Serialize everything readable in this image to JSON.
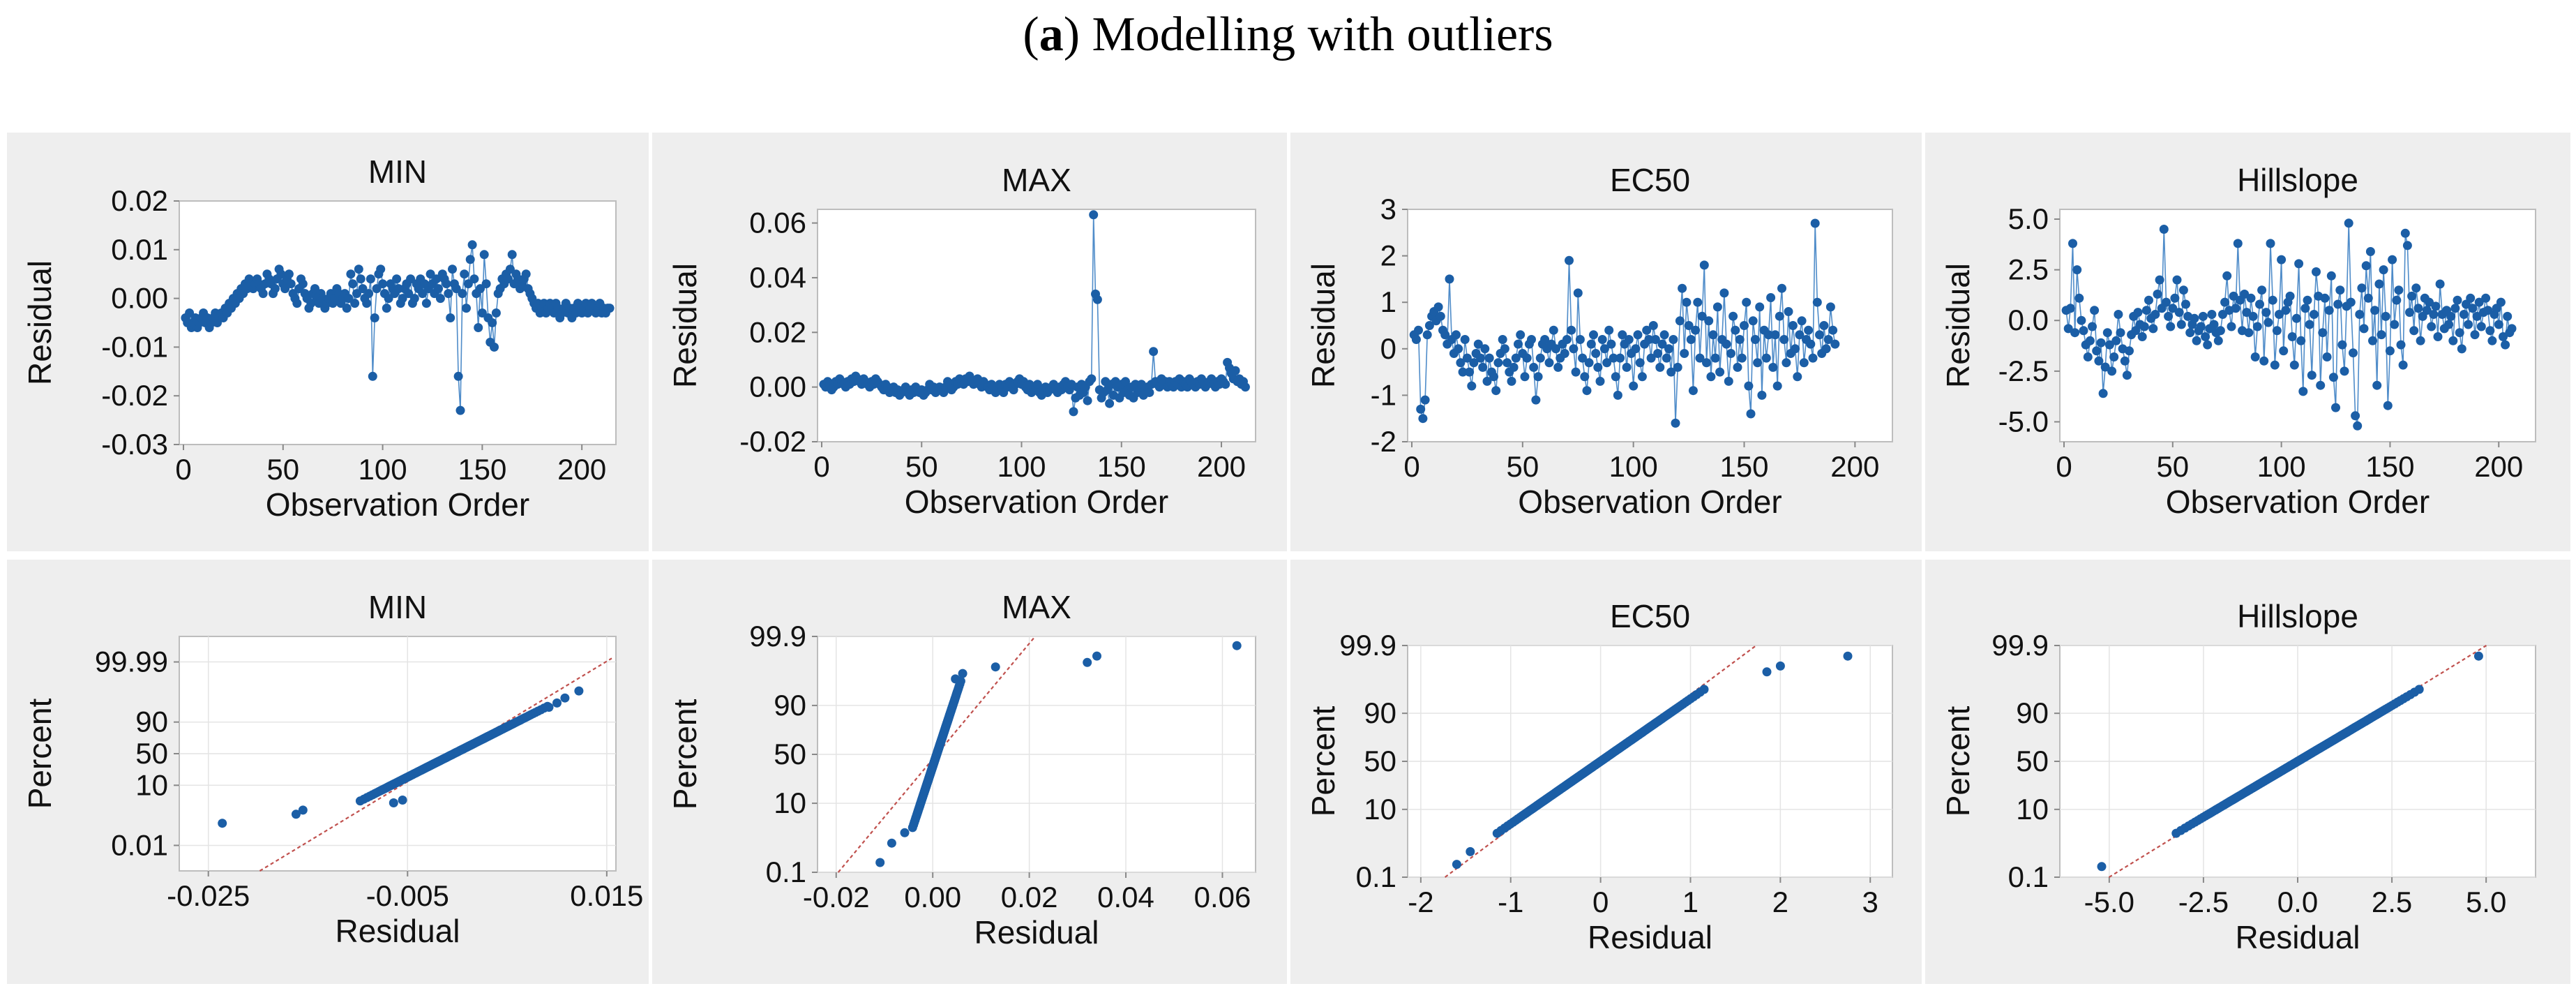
{
  "figure": {
    "label": "a",
    "caption": "Modelling with outliers"
  },
  "chart_data": [
    {
      "type": "line",
      "id": "min-order",
      "title": "MIN",
      "xlabel": "Observation Order",
      "ylabel": "Residual",
      "xlim": [
        0,
        215
      ],
      "ylim": [
        -0.03,
        0.02
      ],
      "xticks": [
        0,
        50,
        100,
        150,
        200
      ],
      "yticks": [
        -0.03,
        -0.02,
        -0.01,
        0.0,
        0.01,
        0.02
      ],
      "ytick_labels": [
        "-0.03",
        "-0.02",
        "-0.01",
        "0.00",
        "0.01",
        "0.02"
      ],
      "values": [
        -0.004,
        -0.005,
        -0.003,
        -0.006,
        -0.005,
        -0.004,
        -0.006,
        -0.005,
        -0.004,
        -0.003,
        -0.005,
        -0.004,
        -0.006,
        -0.005,
        -0.004,
        -0.003,
        -0.005,
        -0.004,
        -0.003,
        -0.004,
        -0.002,
        -0.003,
        -0.001,
        -0.002,
        0.0,
        -0.001,
        0.001,
        0.0,
        0.002,
        0.001,
        0.003,
        0.002,
        0.004,
        0.003,
        0.002,
        0.003,
        0.004,
        0.003,
        0.002,
        0.001,
        0.003,
        0.005,
        0.004,
        0.003,
        0.001,
        0.002,
        0.004,
        0.006,
        0.005,
        0.003,
        0.002,
        0.004,
        0.005,
        0.003,
        0.001,
        0.0,
        -0.001,
        0.002,
        0.004,
        0.003,
        0.001,
        0.0,
        -0.002,
        -0.001,
        0.001,
        0.002,
        0.0,
        -0.001,
        0.001,
        0.0,
        -0.002,
        -0.001,
        0.0,
        0.001,
        -0.001,
        0.0,
        0.002,
        0.001,
        -0.001,
        0.0,
        0.001,
        -0.002,
        0.0,
        0.005,
        0.003,
        -0.001,
        0.001,
        0.006,
        0.004,
        0.002,
        0.0,
        -0.001,
        0.001,
        0.004,
        -0.016,
        -0.004,
        0.002,
        0.005,
        0.006,
        0.003,
        0.001,
        -0.002,
        0.0,
        0.003,
        0.002,
        0.001,
        0.004,
        0.002,
        -0.001,
        0.0,
        0.002,
        0.003,
        0.001,
        0.004,
        -0.001,
        0.0,
        0.003,
        0.002,
        0.004,
        0.001,
        0.003,
        -0.001,
        0.002,
        0.005,
        0.003,
        0.001,
        0.004,
        0.002,
        0.0,
        0.005,
        0.004,
        0.003,
        0.001,
        -0.004,
        0.006,
        0.003,
        0.002,
        -0.016,
        -0.023,
        0.001,
        0.005,
        -0.002,
        0.003,
        0.008,
        0.011,
        0.004,
        0.001,
        -0.006,
        0.002,
        -0.003,
        0.009,
        0.003,
        -0.004,
        -0.009,
        -0.005,
        -0.01,
        -0.003,
        0.001,
        0.002,
        0.004,
        0.003,
        0.005,
        0.004,
        0.006,
        0.009,
        0.003,
        0.005,
        0.004,
        0.002,
        0.003,
        0.004,
        0.005,
        0.002,
        0.001,
        0.0,
        -0.001,
        -0.002,
        -0.001,
        -0.003,
        -0.002,
        -0.001,
        -0.003,
        -0.002,
        -0.001,
        -0.002,
        -0.003,
        -0.001,
        -0.002,
        -0.004,
        -0.003,
        -0.002,
        -0.001,
        -0.003,
        -0.002,
        -0.004,
        -0.002,
        -0.003,
        -0.001,
        -0.002,
        -0.003,
        -0.002,
        -0.001,
        -0.003,
        -0.002,
        -0.001,
        -0.002,
        -0.003,
        -0.002,
        -0.001,
        -0.003,
        -0.002,
        -0.003,
        -0.002,
        -0.002
      ]
    },
    {
      "type": "line",
      "id": "max-order",
      "title": "MAX",
      "xlabel": "Observation Order",
      "ylabel": "Residual",
      "xlim": [
        0,
        215
      ],
      "ylim": [
        -0.02,
        0.065
      ],
      "xticks": [
        0,
        50,
        100,
        150,
        200
      ],
      "yticks": [
        -0.02,
        0.0,
        0.02,
        0.04,
        0.06
      ],
      "ytick_labels": [
        "-0.02",
        "0.00",
        "0.02",
        "0.04",
        "0.06"
      ],
      "values": [
        0.001,
        0.0,
        0.002,
        0.001,
        -0.001,
        0.0,
        0.002,
        0.001,
        0.003,
        0.002,
        0.001,
        0.0,
        0.002,
        0.001,
        0.003,
        0.002,
        0.004,
        0.003,
        0.002,
        0.001,
        0.003,
        0.002,
        0.001,
        0.0,
        0.002,
        0.001,
        0.003,
        0.002,
        0.001,
        0.0,
        -0.001,
        0.001,
        0.0,
        -0.002,
        -0.001,
        0.0,
        -0.002,
        -0.001,
        -0.003,
        -0.002,
        -0.001,
        0.0,
        -0.002,
        -0.003,
        -0.001,
        -0.002,
        0.0,
        -0.001,
        -0.002,
        -0.001,
        -0.003,
        -0.002,
        -0.001,
        0.001,
        -0.001,
        0.0,
        -0.002,
        -0.001,
        0.0,
        -0.001,
        -0.002,
        0.0,
        0.002,
        0.001,
        -0.001,
        0.0,
        0.002,
        0.001,
        0.003,
        0.002,
        0.001,
        0.003,
        0.002,
        0.004,
        0.002,
        0.001,
        0.002,
        0.003,
        0.001,
        0.0,
        0.002,
        0.001,
        0.0,
        -0.001,
        0.001,
        0.0,
        -0.002,
        -0.001,
        0.001,
        0.0,
        -0.002,
        0.001,
        0.0,
        0.002,
        0.001,
        -0.001,
        0.001,
        0.002,
        0.003,
        0.001,
        0.002,
        0.0,
        -0.001,
        0.001,
        -0.002,
        -0.001,
        0.0,
        0.001,
        -0.002,
        -0.003,
        -0.001,
        0.0,
        -0.002,
        -0.001,
        0.0,
        0.001,
        -0.001,
        -0.002,
        0.0,
        -0.001,
        0.001,
        0.002,
        0.0,
        -0.001,
        0.001,
        -0.009,
        -0.004,
        0.0,
        -0.003,
        0.001,
        -0.002,
        0.0,
        -0.005,
        0.002,
        0.003,
        0.063,
        0.034,
        0.032,
        -0.001,
        -0.004,
        -0.002,
        0.002,
        -0.001,
        -0.006,
        0.001,
        -0.003,
        0.002,
        0.0,
        -0.004,
        0.001,
        -0.002,
        0.002,
        -0.001,
        -0.003,
        0.0,
        -0.004,
        0.001,
        -0.002,
        -0.001,
        0.001,
        -0.003,
        -0.001,
        0.0,
        -0.002,
        0.001,
        0.013,
        0.002,
        0.001,
        0.0,
        0.003,
        0.001,
        0.002,
        0.0,
        0.002,
        0.001,
        0.0,
        0.002,
        0.001,
        0.003,
        0.0,
        0.002,
        0.001,
        0.0,
        0.003,
        0.002,
        0.001,
        0.0,
        0.002,
        0.001,
        0.003,
        0.002,
        0.0,
        0.001,
        0.002,
        0.003,
        0.001,
        0.0,
        0.002,
        0.001,
        0.003,
        0.002,
        0.001,
        0.009,
        0.007,
        0.005,
        0.003,
        0.006,
        0.002,
        0.003,
        0.001,
        0.002,
        0.0
      ]
    },
    {
      "type": "line",
      "id": "ec50-order",
      "title": "EC50",
      "xlabel": "Observation Order",
      "ylabel": "Residual",
      "xlim": [
        0,
        215
      ],
      "ylim": [
        -2,
        3
      ],
      "xticks": [
        0,
        50,
        100,
        150,
        200
      ],
      "yticks": [
        -2,
        -1,
        0,
        1,
        2,
        3
      ],
      "ytick_labels": [
        "-2",
        "-1",
        "0",
        "1",
        "2",
        "3"
      ],
      "values": [
        0.3,
        0.2,
        0.4,
        -1.3,
        -1.5,
        -1.1,
        0.3,
        0.5,
        0.7,
        0.8,
        0.6,
        0.9,
        0.7,
        0.4,
        0.3,
        0.1,
        1.5,
        0.2,
        -0.1,
        0.3,
        0.0,
        -0.3,
        -0.5,
        0.2,
        -0.2,
        -0.5,
        -0.8,
        -0.3,
        -0.1,
        0.1,
        -0.2,
        -0.4,
        0.0,
        -0.7,
        -0.2,
        -0.5,
        -0.6,
        -0.9,
        -0.3,
        -0.1,
        0.2,
        0.0,
        -0.3,
        -0.5,
        -0.7,
        -0.4,
        -0.2,
        0.1,
        0.3,
        -0.1,
        -0.6,
        -0.2,
        0.1,
        0.2,
        -0.4,
        -1.1,
        -0.6,
        -0.2,
        0.1,
        0.2,
        0.0,
        -0.3,
        0.1,
        0.4,
        0.0,
        -0.4,
        -0.2,
        0.1,
        -0.1,
        0.2,
        1.9,
        0.4,
        0.0,
        -0.5,
        1.2,
        0.2,
        -0.2,
        -0.6,
        -0.9,
        -0.3,
        0.1,
        0.3,
        -0.1,
        -0.4,
        -0.7,
        0.2,
        0.0,
        -0.3,
        0.4,
        0.1,
        -0.2,
        -0.6,
        -1.0,
        -0.2,
        0.3,
        0.1,
        -0.4,
        0.2,
        -0.1,
        -0.8,
        0.0,
        0.3,
        -0.3,
        -0.6,
        0.1,
        0.4,
        0.2,
        -0.2,
        0.5,
        0.2,
        -0.1,
        -0.4,
        0.1,
        0.3,
        -0.2,
        0.0,
        -0.5,
        0.2,
        -1.6,
        -0.4,
        0.6,
        1.3,
        -0.1,
        1.0,
        0.5,
        0.2,
        -0.9,
        0.4,
        1.0,
        -0.2,
        0.7,
        1.8,
        -0.3,
        0.6,
        -0.6,
        0.3,
        -0.2,
        0.9,
        -0.5,
        0.2,
        1.2,
        0.1,
        -0.7,
        -0.1,
        0.7,
        0.4,
        -0.4,
        0.2,
        -0.2,
        0.5,
        1.0,
        -0.8,
        -1.4,
        0.6,
        0.2,
        -0.3,
        0.9,
        -1.0,
        0.4,
        -0.2,
        0.3,
        1.1,
        -0.4,
        0.3,
        -0.8,
        0.7,
        1.3,
        0.2,
        -0.3,
        0.8,
        -0.1,
        0.5,
        0.0,
        -0.6,
        0.3,
        0.6,
        -0.3,
        0.2,
        0.4,
        0.1,
        -0.2,
        2.7,
        1.0,
        0.3,
        -0.1,
        0.5,
        0.0,
        0.2,
        0.9,
        0.4,
        0.1
      ]
    },
    {
      "type": "line",
      "id": "hillslope-order",
      "title": "Hillslope",
      "xlabel": "Observation Order",
      "ylabel": "Residual",
      "xlim": [
        0,
        215
      ],
      "ylim": [
        -5.5,
        5.0
      ],
      "xticks": [
        0,
        50,
        100,
        150,
        200
      ],
      "yticks": [
        -5.0,
        -2.5,
        0.0,
        2.5,
        5.0
      ],
      "ytick_labels": [
        "-5.0",
        "-2.5",
        "0.0",
        "2.5",
        "5.0"
      ],
      "values": [
        0.5,
        -0.4,
        0.6,
        3.8,
        -0.6,
        2.5,
        1.1,
        0.0,
        -0.5,
        -1.2,
        -1.8,
        -1.0,
        -0.3,
        0.5,
        -1.5,
        -2.0,
        -1.1,
        -3.6,
        -2.3,
        -0.6,
        -1.2,
        -2.5,
        -1.8,
        -1.0,
        0.3,
        -0.6,
        -1.4,
        -2.0,
        -2.7,
        -1.5,
        -0.7,
        0.2,
        -0.5,
        0.4,
        -0.2,
        -0.8,
        -0.3,
        0.5,
        1.0,
        0.1,
        -0.4,
        0.3,
        1.3,
        2.0,
        0.6,
        4.5,
        0.9,
        0.2,
        -0.3,
        0.6,
        1.1,
        2.0,
        0.4,
        -0.2,
        1.5,
        0.8,
        0.2,
        -0.6,
        -0.2,
        0.1,
        -1.0,
        -0.5,
        -0.3,
        0.2,
        -0.8,
        -1.2,
        -0.4,
        0.3,
        -0.2,
        -0.6,
        -1.0,
        -0.5,
        0.3,
        0.9,
        2.2,
        0.5,
        -0.3,
        1.2,
        0.6,
        3.8,
        1.0,
        -0.5,
        1.3,
        0.4,
        -0.6,
        1.1,
        0.2,
        -1.8,
        -0.3,
        0.8,
        1.5,
        -2.0,
        0.4,
        -0.1,
        3.8,
        1.0,
        -2.2,
        -0.5,
        0.3,
        3.0,
        -1.5,
        0.5,
        0.9,
        1.2,
        -0.8,
        -2.2,
        0.1,
        2.8,
        -1.0,
        -3.5,
        0.6,
        1.0,
        -0.2,
        -2.7,
        0.3,
        2.4,
        1.2,
        -3.2,
        -0.6,
        1.1,
        -1.8,
        0.5,
        2.2,
        -2.8,
        -4.3,
        0.8,
        1.5,
        -1.2,
        -2.5,
        0.7,
        4.8,
        0.9,
        -1.6,
        -4.7,
        -5.2,
        0.3,
        1.6,
        -0.4,
        2.7,
        1.1,
        3.4,
        -1.0,
        0.5,
        -3.2,
        1.8,
        -0.7,
        2.5,
        0.2,
        -4.2,
        -1.5,
        3.0,
        -0.2,
        1.0,
        1.5,
        -1.2,
        -2.2,
        4.3,
        3.7,
        0.4,
        1.2,
        -0.5,
        1.6,
        0.6,
        -1.0,
        0.2,
        1.1,
        0.5,
        0.9,
        -0.3,
        0.3,
        0.7,
        -0.8,
        1.8,
        0.3,
        -0.4,
        0.5,
        -0.2,
        0.2,
        -1.0,
        0.6,
        1.0,
        -0.6,
        -1.4,
        0.3,
        0.8,
        -0.2,
        1.1,
        0.6,
        -0.7,
        0.2,
        0.9,
        -0.3,
        0.4,
        1.1,
        0.5,
        -0.5,
        -1.0,
        0.3,
        0.6,
        -0.2,
        0.9,
        -0.8,
        -1.2,
        0.2,
        -0.6,
        -0.4
      ]
    },
    {
      "type": "scatter",
      "id": "min-prob",
      "title": "MIN",
      "xlabel": "Residual",
      "ylabel": "Percent",
      "xlim": [
        -0.0275,
        0.0155
      ],
      "percent_lim": [
        0.0001,
        99.9999
      ],
      "xticks": [
        -0.025,
        -0.005,
        0.015
      ],
      "xtick_labels": [
        "-0.025",
        "-0.005",
        "0.015"
      ],
      "percent_ticks": [
        0.01,
        10,
        50,
        90,
        99.99
      ],
      "percent_tick_labels": [
        "0.01",
        "10",
        "50",
        "90",
        "99.99"
      ],
      "ref_line": {
        "mean": -0.00035,
        "sd": 0.0041
      },
      "sd": 0.0049,
      "extremes": [
        [
          -0.0236,
          0.24
        ],
        [
          -0.0162,
          0.7
        ],
        [
          -0.0155,
          1.1
        ],
        [
          -0.0064,
          2.3
        ],
        [
          -0.0055,
          3.0
        ],
        [
          0.0092,
          97.0
        ],
        [
          0.01,
          98.0
        ],
        [
          0.0108,
          98.8
        ],
        [
          0.0122,
          99.45
        ]
      ]
    },
    {
      "type": "scatter",
      "id": "max-prob",
      "title": "MAX",
      "xlabel": "Residual",
      "ylabel": "Percent",
      "xlim": [
        -0.023,
        0.066
      ],
      "percent_lim": [
        0.1,
        99.9
      ],
      "xticks": [
        -0.02,
        0.0,
        0.02,
        0.04,
        0.06
      ],
      "xtick_labels": [
        "-0.02",
        "0.00",
        "0.02",
        "0.04",
        "0.06"
      ],
      "percent_ticks": [
        0.1,
        10,
        50,
        90,
        99.9
      ],
      "percent_tick_labels": [
        "0.1",
        "10",
        "50",
        "90",
        "99.9"
      ],
      "ref_line": {
        "mean": 0.00082,
        "sd": 0.0066
      },
      "sd": 0.0026,
      "extremes": [
        [
          -0.0109,
          0.23
        ],
        [
          -0.0085,
          1.0
        ],
        [
          -0.0058,
          2.0
        ],
        [
          0.0047,
          97.6
        ],
        [
          0.0062,
          98.3
        ],
        [
          0.013,
          98.9
        ],
        [
          0.032,
          99.2
        ],
        [
          0.034,
          99.5
        ],
        [
          0.063,
          99.78
        ]
      ]
    },
    {
      "type": "scatter",
      "id": "ec50-prob",
      "title": "EC50",
      "xlabel": "Residual",
      "ylabel": "Percent",
      "xlim": [
        -2.1,
        3.2
      ],
      "percent_lim": [
        0.1,
        99.9
      ],
      "xticks": [
        -2,
        -1,
        0,
        1,
        2,
        3
      ],
      "xtick_labels": [
        "-2",
        "-1",
        "0",
        "1",
        "2",
        "3"
      ],
      "percent_ticks": [
        0.1,
        10,
        50,
        90,
        99.9
      ],
      "percent_tick_labels": [
        "0.1",
        "10",
        "50",
        "90",
        "99.9"
      ],
      "ref_line": {
        "mean": 0.0,
        "sd": 0.56
      },
      "sd": 0.6,
      "extremes": [
        [
          -1.6,
          0.3
        ],
        [
          -1.45,
          0.8
        ],
        [
          1.85,
          99.15
        ],
        [
          2.0,
          99.45
        ],
        [
          2.75,
          99.75
        ]
      ]
    },
    {
      "type": "scatter",
      "id": "hillslope-prob",
      "title": "Hillslope",
      "xlabel": "Residual",
      "ylabel": "Percent",
      "xlim": [
        -6.2,
        6.2
      ],
      "percent_lim": [
        0.1,
        99.9
      ],
      "xticks": [
        -5.0,
        -2.5,
        0.0,
        2.5,
        5.0
      ],
      "xtick_labels": [
        "-5.0",
        "-2.5",
        "0.0",
        "2.5",
        "5.0"
      ],
      "percent_ticks": [
        0.1,
        10,
        50,
        90,
        99.9
      ],
      "percent_tick_labels": [
        "0.1",
        "10",
        "50",
        "90",
        "99.9"
      ],
      "ref_line": {
        "mean": 0.0,
        "sd": 1.62
      },
      "sd": 1.68,
      "extremes": [
        [
          -5.2,
          0.25
        ],
        [
          4.8,
          99.75
        ]
      ]
    }
  ],
  "colors": {
    "panel_bg": "#eeeeee",
    "point": "#1b5ea6",
    "connector": "#4f8cc9",
    "reference": "#c0504d"
  }
}
